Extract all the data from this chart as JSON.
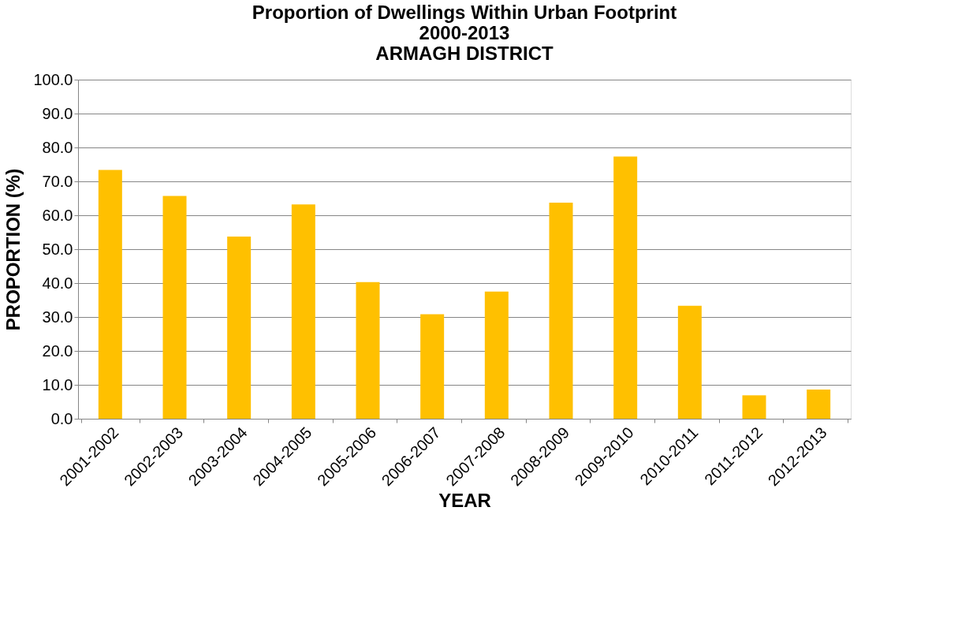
{
  "chart_data": {
    "type": "bar",
    "title": [
      "Proportion of Dwellings Within Urban Footprint",
      "2000-2013",
      "ARMAGH DISTRICT"
    ],
    "xlabel": "YEAR",
    "ylabel": "PROPORTION (%)",
    "categories": [
      "2001-2002",
      "2002-2003",
      "2003-2004",
      "2004-2005",
      "2005-2006",
      "2006-2007",
      "2007-2008",
      "2008-2009",
      "2009-2010",
      "2010-2011",
      "2011-2012",
      "2012-2013"
    ],
    "values": [
      73.4,
      65.7,
      53.7,
      63.2,
      40.3,
      30.8,
      37.5,
      63.7,
      77.3,
      33.3,
      6.9,
      8.6
    ],
    "color": "#ffc000",
    "ylim": [
      0,
      100
    ],
    "yticks": [
      {
        "value": 0,
        "label": "0.0"
      },
      {
        "value": 10,
        "label": "10.0"
      },
      {
        "value": 20,
        "label": "20.0"
      },
      {
        "value": 30,
        "label": "30.0"
      },
      {
        "value": 40,
        "label": "40.0"
      },
      {
        "value": 50,
        "label": "50.0"
      },
      {
        "value": 60,
        "label": "60.0"
      },
      {
        "value": 70,
        "label": "70.0"
      },
      {
        "value": 80,
        "label": "80.0"
      },
      {
        "value": 90,
        "label": "90.0"
      },
      {
        "value": 100,
        "label": "100.0"
      }
    ],
    "grid": "y"
  }
}
